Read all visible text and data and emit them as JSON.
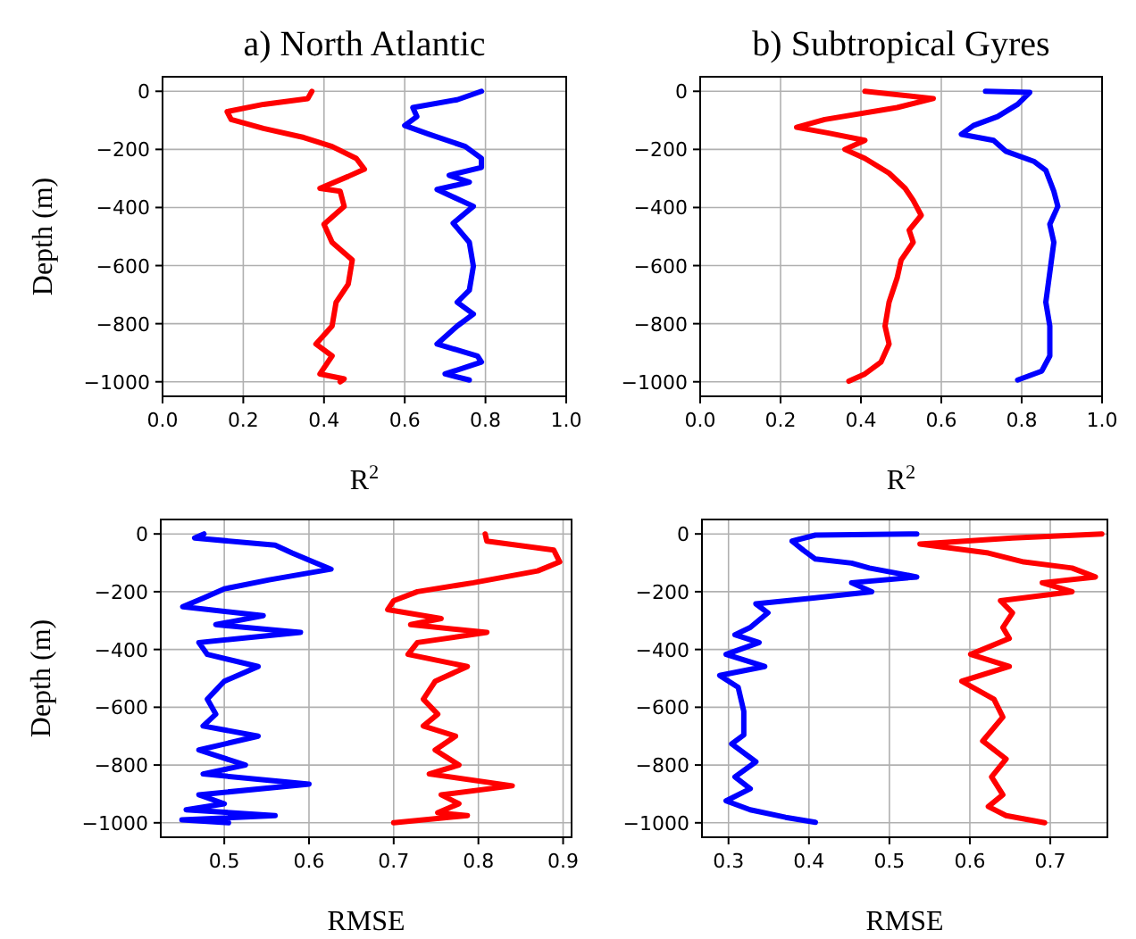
{
  "chart_data": [
    {
      "type": "line",
      "title": "a) North Atlantic",
      "xlabel": "R$^{2}$",
      "ylabel": "Depth (m)",
      "xlim": [
        0,
        1
      ],
      "ylim": [
        -1050,
        50
      ],
      "xticks": [
        {
          "value": 0,
          "label": "0.0"
        },
        {
          "value": 0.2,
          "label": "0.2"
        },
        {
          "value": 0.4,
          "label": "0.4"
        },
        {
          "value": 0.6,
          "label": "0.6"
        },
        {
          "value": 0.8,
          "label": "0.8"
        },
        {
          "value": 1,
          "label": "1.0"
        }
      ],
      "yticks": [
        {
          "value": 0,
          "label": "0"
        },
        {
          "value": -200,
          "label": "−200"
        },
        {
          "value": -400,
          "label": "−400"
        },
        {
          "value": -600,
          "label": "−600"
        },
        {
          "value": -800,
          "label": "−800"
        },
        {
          "value": -1000,
          "label": "−1000"
        }
      ],
      "grid": true,
      "marker": "none",
      "line_style": "solid",
      "series": [
        {
          "color": "#ff0000",
          "x": [
            0.37,
            0.36,
            0.25,
            0.16,
            0.17,
            0.25,
            0.35,
            0.42,
            0.48,
            0.5,
            0.46,
            0.39,
            0.44,
            0.45,
            0.4,
            0.42,
            0.47,
            0.46,
            0.43,
            0.42,
            0.38,
            0.42,
            0.39,
            0.45,
            0.44
          ],
          "values": [
            0,
            -25,
            -45,
            -70,
            -97,
            -128,
            -159,
            -190,
            -231,
            -268,
            -293,
            -334,
            -344,
            -396,
            -458,
            -520,
            -581,
            -664,
            -726,
            -808,
            -870,
            -911,
            -973,
            -990,
            -1000
          ]
        },
        {
          "color": "#0000ff",
          "x": [
            0.79,
            0.73,
            0.62,
            0.63,
            0.6,
            0.66,
            0.75,
            0.79,
            0.79,
            0.71,
            0.76,
            0.68,
            0.77,
            0.72,
            0.76,
            0.77,
            0.76,
            0.73,
            0.77,
            0.73,
            0.68,
            0.78,
            0.79,
            0.7,
            0.76
          ],
          "values": [
            0,
            -29,
            -56,
            -87,
            -118,
            -148,
            -190,
            -231,
            -262,
            -289,
            -313,
            -338,
            -396,
            -454,
            -520,
            -602,
            -685,
            -726,
            -767,
            -808,
            -870,
            -911,
            -932,
            -973,
            -994
          ]
        }
      ]
    },
    {
      "type": "line",
      "title": "b) Subtropical Gyres",
      "xlabel": "R$^{2}$",
      "xlim": [
        0,
        1
      ],
      "ylim": [
        -1050,
        50
      ],
      "xticks": [
        {
          "value": 0,
          "label": "0.0"
        },
        {
          "value": 0.2,
          "label": "0.2"
        },
        {
          "value": 0.4,
          "label": "0.4"
        },
        {
          "value": 0.6,
          "label": "0.6"
        },
        {
          "value": 0.8,
          "label": "0.8"
        },
        {
          "value": 1,
          "label": "1.0"
        }
      ],
      "yticks": [
        {
          "value": 0,
          "label": "0"
        },
        {
          "value": -200,
          "label": "−200"
        },
        {
          "value": -400,
          "label": "−400"
        },
        {
          "value": -600,
          "label": "−600"
        },
        {
          "value": -800,
          "label": "−800"
        },
        {
          "value": -1000,
          "label": "−1000"
        }
      ],
      "grid": true,
      "marker": "none",
      "line_style": "solid",
      "series": [
        {
          "color": "#ff0000",
          "x": [
            0.41,
            0.58,
            0.49,
            0.31,
            0.24,
            0.32,
            0.41,
            0.36,
            0.41,
            0.47,
            0.51,
            0.53,
            0.55,
            0.52,
            0.53,
            0.5,
            0.49,
            0.47,
            0.46,
            0.47,
            0.45,
            0.41,
            0.37
          ],
          "values": [
            0,
            -25,
            -56,
            -97,
            -124,
            -144,
            -169,
            -200,
            -231,
            -282,
            -334,
            -375,
            -427,
            -478,
            -520,
            -581,
            -643,
            -726,
            -808,
            -870,
            -932,
            -973,
            -998
          ]
        },
        {
          "color": "#0000ff",
          "x": [
            0.71,
            0.82,
            0.79,
            0.74,
            0.68,
            0.65,
            0.73,
            0.76,
            0.83,
            0.86,
            0.88,
            0.89,
            0.87,
            0.88,
            0.87,
            0.86,
            0.87,
            0.87,
            0.85,
            0.79
          ],
          "values": [
            0,
            -4,
            -45,
            -87,
            -118,
            -148,
            -169,
            -206,
            -241,
            -272,
            -344,
            -396,
            -458,
            -520,
            -623,
            -726,
            -808,
            -911,
            -963,
            -994
          ]
        }
      ]
    },
    {
      "type": "line",
      "xlabel": "RMSE",
      "ylabel": "Depth (m)",
      "xlim": [
        0.425,
        0.91
      ],
      "ylim": [
        -1050,
        50
      ],
      "xticks": [
        0.5,
        0.6,
        0.7,
        0.8,
        0.9
      ],
      "yticks": [
        {
          "value": 0,
          "label": "0"
        },
        {
          "value": -200,
          "label": "−200"
        },
        {
          "value": -400,
          "label": "−400"
        },
        {
          "value": -600,
          "label": "−600"
        },
        {
          "value": -800,
          "label": "−800"
        },
        {
          "value": -1000,
          "label": "−1000"
        }
      ],
      "grid": true,
      "marker": "none",
      "line_style": "solid",
      "series": [
        {
          "color": "#0000ff",
          "x": [
            0.476,
            0.465,
            0.56,
            0.58,
            0.605,
            0.626,
            0.553,
            0.5,
            0.476,
            0.451,
            0.546,
            0.49,
            0.59,
            0.47,
            0.48,
            0.54,
            0.5,
            0.48,
            0.49,
            0.475,
            0.54,
            0.47,
            0.525,
            0.475,
            0.6,
            0.47,
            0.5,
            0.455,
            0.56,
            0.45,
            0.505
          ],
          "values": [
            0,
            -14,
            -39,
            -66,
            -97,
            -122,
            -159,
            -190,
            -221,
            -252,
            -283,
            -314,
            -341,
            -376,
            -417,
            -459,
            -510,
            -572,
            -624,
            -665,
            -700,
            -748,
            -800,
            -831,
            -866,
            -903,
            -934,
            -955,
            -975,
            -990,
            -1000
          ]
        },
        {
          "color": "#ff0000",
          "x": [
            0.808,
            0.81,
            0.889,
            0.896,
            0.87,
            0.794,
            0.728,
            0.7,
            0.693,
            0.756,
            0.72,
            0.81,
            0.728,
            0.717,
            0.787,
            0.749,
            0.735,
            0.752,
            0.735,
            0.773,
            0.749,
            0.777,
            0.742,
            0.84,
            0.756,
            0.777,
            0.752,
            0.787,
            0.7
          ],
          "values": [
            0,
            -25,
            -56,
            -97,
            -128,
            -169,
            -200,
            -231,
            -262,
            -293,
            -314,
            -341,
            -376,
            -417,
            -459,
            -510,
            -572,
            -624,
            -665,
            -700,
            -748,
            -800,
            -831,
            -872,
            -903,
            -934,
            -965,
            -975,
            -1000
          ]
        }
      ]
    },
    {
      "type": "line",
      "xlabel": "RMSE",
      "xlim": [
        0.267,
        0.771
      ],
      "ylim": [
        -1050,
        50
      ],
      "xticks": [
        0.3,
        0.4,
        0.5,
        0.6,
        0.7
      ],
      "yticks": [
        {
          "value": 0,
          "label": "0"
        },
        {
          "value": -200,
          "label": "−200"
        },
        {
          "value": -400,
          "label": "−400"
        },
        {
          "value": -600,
          "label": "−600"
        },
        {
          "value": -800,
          "label": "−800"
        },
        {
          "value": -1000,
          "label": "−1000"
        }
      ],
      "grid": true,
      "marker": "none",
      "line_style": "solid",
      "series": [
        {
          "color": "#0000ff",
          "x": [
            0.534,
            0.408,
            0.379,
            0.393,
            0.408,
            0.453,
            0.475,
            0.534,
            0.453,
            0.478,
            0.408,
            0.334,
            0.349,
            0.327,
            0.308,
            0.338,
            0.297,
            0.345,
            0.289,
            0.312,
            0.319,
            0.319,
            0.304,
            0.334,
            0.308,
            0.327,
            0.297,
            0.327,
            0.371,
            0.408
          ],
          "values": [
            0,
            -4,
            -25,
            -56,
            -87,
            -101,
            -118,
            -149,
            -169,
            -200,
            -221,
            -242,
            -273,
            -324,
            -349,
            -376,
            -417,
            -459,
            -490,
            -531,
            -614,
            -696,
            -727,
            -789,
            -841,
            -882,
            -924,
            -955,
            -981,
            -998
          ]
        },
        {
          "color": "#ff0000",
          "x": [
            0.764,
            0.653,
            0.538,
            0.623,
            0.667,
            0.727,
            0.756,
            0.69,
            0.727,
            0.638,
            0.653,
            0.641,
            0.649,
            0.601,
            0.649,
            0.59,
            0.63,
            0.641,
            0.616,
            0.645,
            0.627,
            0.641,
            0.623,
            0.645,
            0.693
          ],
          "values": [
            0,
            -14,
            -35,
            -66,
            -97,
            -118,
            -149,
            -169,
            -200,
            -231,
            -273,
            -324,
            -362,
            -417,
            -459,
            -510,
            -572,
            -634,
            -717,
            -779,
            -841,
            -903,
            -944,
            -975,
            -1000
          ]
        }
      ]
    }
  ]
}
